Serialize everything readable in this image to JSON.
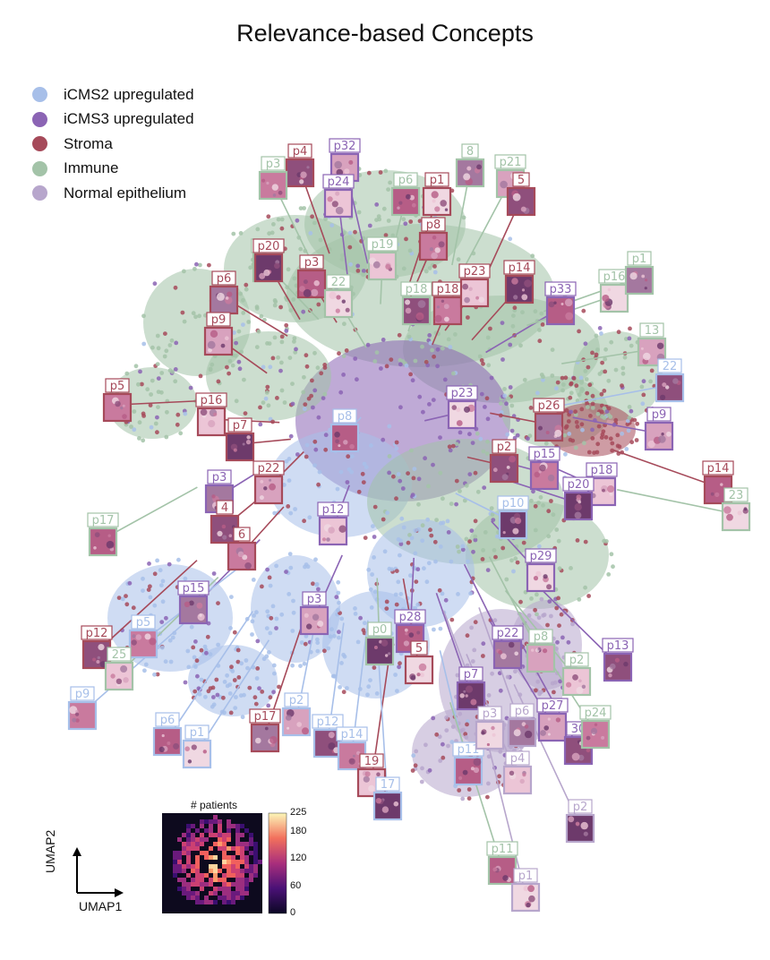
{
  "chart_data": {
    "type": "scatter",
    "title": "Relevance-based Concepts",
    "xlabel": "UMAP1",
    "ylabel": "UMAP2",
    "legend_placement": "top-left",
    "series": [
      {
        "name": "iCMS2 upregulated",
        "color": "#a7bfe9"
      },
      {
        "name": "iCMS3 upregulated",
        "color": "#8b64b4"
      },
      {
        "name": "Stroma",
        "color": "#a64a5a"
      },
      {
        "name": "Immune",
        "color": "#a3c3a8"
      },
      {
        "name": "Normal epithelium",
        "color": "#b7a6cc"
      }
    ],
    "concept_labels": [
      {
        "text": "p32",
        "series": 1
      },
      {
        "text": "p4",
        "series": 2
      },
      {
        "text": "p3",
        "series": 3
      },
      {
        "text": "p24",
        "series": 1
      },
      {
        "text": "p20",
        "series": 3
      },
      {
        "text": "p6",
        "series": 3
      },
      {
        "text": "p1",
        "series": 2
      },
      {
        "text": "8",
        "series": 3
      },
      {
        "text": "p21",
        "series": 3
      },
      {
        "text": "5",
        "series": 2
      },
      {
        "text": "p8",
        "series": 2
      },
      {
        "text": "p19",
        "series": 3
      },
      {
        "text": "p20",
        "series": 2
      },
      {
        "text": "p3",
        "series": 2
      },
      {
        "text": "22",
        "series": 3
      },
      {
        "text": "p6",
        "series": 2
      },
      {
        "text": "p9",
        "series": 2
      },
      {
        "text": "p18",
        "series": 3
      },
      {
        "text": "p18",
        "series": 2
      },
      {
        "text": "p23",
        "series": 2
      },
      {
        "text": "p14",
        "series": 2
      },
      {
        "text": "p33",
        "series": 1
      },
      {
        "text": "p16",
        "series": 3
      },
      {
        "text": "p1",
        "series": 3
      },
      {
        "text": "13",
        "series": 3
      },
      {
        "text": "22",
        "series": 0
      },
      {
        "text": "p5",
        "series": 2
      },
      {
        "text": "p16",
        "series": 2
      },
      {
        "text": "p7",
        "series": 2
      },
      {
        "text": "p8",
        "series": 0
      },
      {
        "text": "p23",
        "series": 1
      },
      {
        "text": "p26",
        "series": 2
      },
      {
        "text": "p9",
        "series": 1
      },
      {
        "text": "p2",
        "series": 2
      },
      {
        "text": "p15",
        "series": 1
      },
      {
        "text": "p18",
        "series": 1
      },
      {
        "text": "p20",
        "series": 1
      },
      {
        "text": "p14",
        "series": 2
      },
      {
        "text": "23",
        "series": 3
      },
      {
        "text": "p3",
        "series": 1
      },
      {
        "text": "p22",
        "series": 2
      },
      {
        "text": "4",
        "series": 2
      },
      {
        "text": "6",
        "series": 2
      },
      {
        "text": "p12",
        "series": 1
      },
      {
        "text": "p10",
        "series": 0
      },
      {
        "text": "p17",
        "series": 3
      },
      {
        "text": "p29",
        "series": 1
      },
      {
        "text": "p15",
        "series": 1
      },
      {
        "text": "p3",
        "series": 1
      },
      {
        "text": "p12",
        "series": 2
      },
      {
        "text": "p5",
        "series": 0
      },
      {
        "text": "25",
        "series": 3
      },
      {
        "text": "p0",
        "series": 3
      },
      {
        "text": "p28",
        "series": 1
      },
      {
        "text": "5",
        "series": 2
      },
      {
        "text": "p22",
        "series": 1
      },
      {
        "text": "p8",
        "series": 3
      },
      {
        "text": "p13",
        "series": 1
      },
      {
        "text": "p9",
        "series": 0
      },
      {
        "text": "p2",
        "series": 3
      },
      {
        "text": "p7",
        "series": 1
      },
      {
        "text": "p6",
        "series": 0
      },
      {
        "text": "p1",
        "series": 0
      },
      {
        "text": "p17",
        "series": 2
      },
      {
        "text": "p2",
        "series": 0
      },
      {
        "text": "p12",
        "series": 0
      },
      {
        "text": "p14",
        "series": 0
      },
      {
        "text": "19",
        "series": 2
      },
      {
        "text": "17",
        "series": 0
      },
      {
        "text": "p11",
        "series": 0
      },
      {
        "text": "p3",
        "series": 4
      },
      {
        "text": "p6",
        "series": 4
      },
      {
        "text": "p27",
        "series": 1
      },
      {
        "text": "30",
        "series": 1
      },
      {
        "text": "p24",
        "series": 3
      },
      {
        "text": "p4",
        "series": 4
      },
      {
        "text": "p2",
        "series": 4
      },
      {
        "text": "p11",
        "series": 3
      },
      {
        "text": "p1",
        "series": 4
      }
    ],
    "inset": {
      "title": "# patients",
      "type": "heatmap",
      "colorbar_ticks": [
        0,
        60,
        120,
        180,
        225
      ],
      "vmin": 0,
      "vmax": 225
    }
  }
}
